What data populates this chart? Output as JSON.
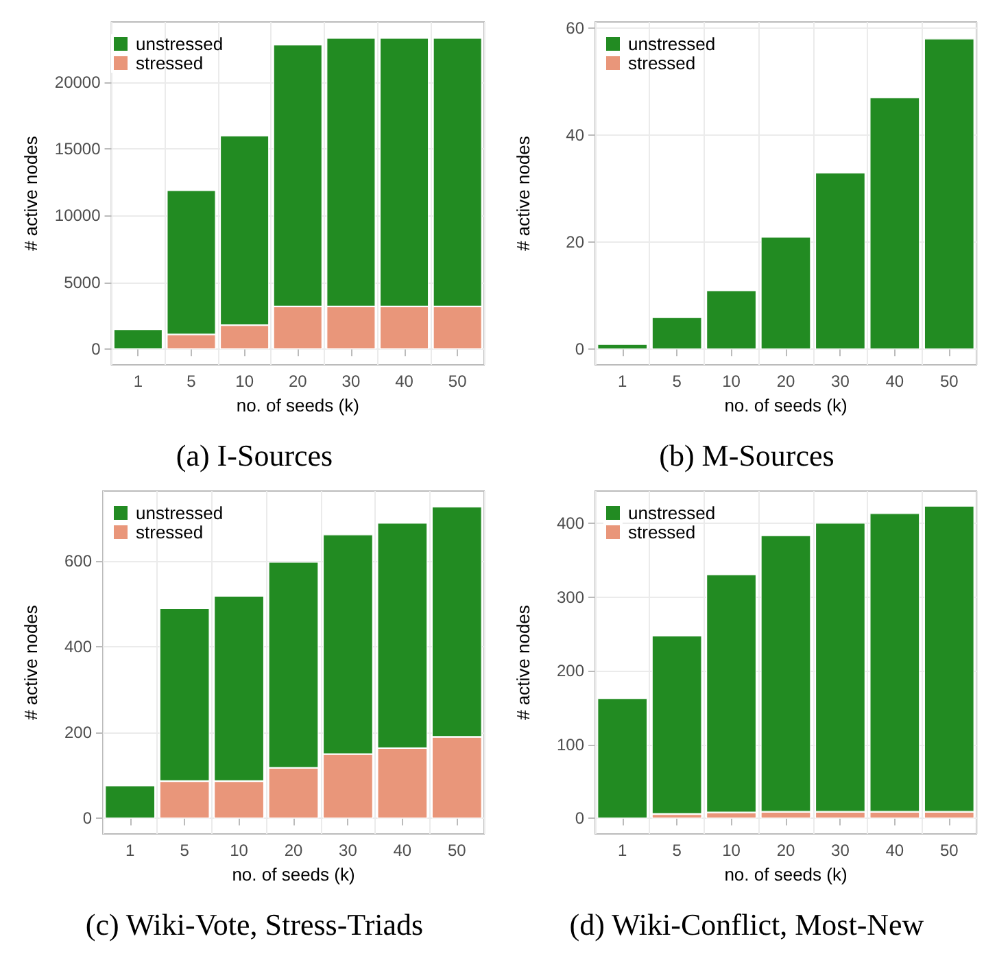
{
  "chart_data": [
    {
      "type": "bar",
      "title": "(a) I-Sources",
      "xlabel": "no. of seeds (k)",
      "ylabel": "# active nodes",
      "categories": [
        "1",
        "5",
        "10",
        "20",
        "30",
        "40",
        "50"
      ],
      "stacked": true,
      "series": [
        {
          "name": "stressed",
          "color": "#e9967a",
          "values": [
            null,
            1100,
            1800,
            3200,
            3200,
            3200,
            3200
          ]
        },
        {
          "name": "unstressed",
          "color": "#228b22",
          "values": [
            1500,
            10800,
            14200,
            19600,
            20100,
            20100,
            20100
          ]
        }
      ],
      "ylim": [
        -1170,
        24500
      ],
      "yticks": [
        0,
        5000,
        10000,
        15000,
        20000
      ],
      "grid": true,
      "legend": "top left"
    },
    {
      "type": "bar",
      "title": "(b) M-Sources",
      "xlabel": "no. of seeds (k)",
      "ylabel": "# active nodes",
      "categories": [
        "1",
        "5",
        "10",
        "20",
        "30",
        "40",
        "50"
      ],
      "stacked": true,
      "series": [
        {
          "name": "stressed",
          "color": "#e9967a",
          "values": [
            null,
            null,
            null,
            null,
            null,
            null,
            null
          ]
        },
        {
          "name": "unstressed",
          "color": "#228b22",
          "values": [
            1,
            6,
            11,
            21,
            33,
            47,
            58
          ]
        }
      ],
      "ylim": [
        -2.9,
        61.1
      ],
      "yticks": [
        0,
        20,
        40,
        60
      ],
      "grid": true,
      "legend": "top left"
    },
    {
      "type": "bar",
      "title": "(c) Wiki-Vote, Stress-Triads",
      "xlabel": "no. of seeds (k)",
      "ylabel": "# active nodes",
      "categories": [
        "1",
        "5",
        "10",
        "20",
        "30",
        "40",
        "50"
      ],
      "stacked": true,
      "series": [
        {
          "name": "stressed",
          "color": "#e9967a",
          "values": [
            null,
            87,
            87,
            118,
            150,
            164,
            190
          ]
        },
        {
          "name": "unstressed",
          "color": "#228b22",
          "values": [
            77,
            403,
            432,
            480,
            512,
            525,
            537
          ]
        }
      ],
      "ylim": [
        -36,
        763
      ],
      "yticks": [
        0,
        200,
        400,
        600
      ],
      "grid": true,
      "legend": "top left"
    },
    {
      "type": "bar",
      "title": "(d) Wiki-Conflict, Most-New",
      "xlabel": "no. of seeds (k)",
      "ylabel": "# active nodes",
      "categories": [
        "1",
        "5",
        "10",
        "20",
        "30",
        "40",
        "50"
      ],
      "stacked": true,
      "series": [
        {
          "name": "stressed",
          "color": "#e9967a",
          "values": [
            null,
            6,
            8,
            9,
            9,
            9,
            9
          ]
        },
        {
          "name": "unstressed",
          "color": "#228b22",
          "values": [
            163,
            242,
            323,
            375,
            392,
            405,
            415
          ]
        }
      ],
      "ylim": [
        -21,
        444
      ],
      "yticks": [
        0,
        100,
        200,
        300,
        400
      ],
      "grid": true,
      "legend": "top left"
    }
  ]
}
